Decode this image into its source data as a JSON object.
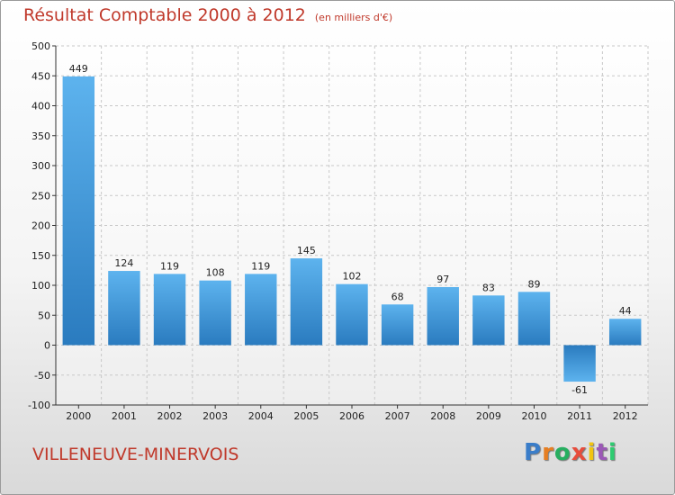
{
  "header": {
    "title": "Résultat Comptable 2000 à 2012",
    "unit": "(en milliers d'€)"
  },
  "footer": {
    "commune": "VILLENEUVE-MINERVOIS"
  },
  "logo": {
    "letters": [
      "P",
      "r",
      "o",
      "x",
      "i",
      "t",
      "i"
    ],
    "colors": [
      "#3a7dc9",
      "#e67e22",
      "#27ae60",
      "#e74c3c",
      "#f1c40f",
      "#9b59b6",
      "#2ecc71"
    ]
  },
  "chart_data": {
    "type": "bar",
    "categories": [
      "2000",
      "2001",
      "2002",
      "2003",
      "2004",
      "2005",
      "2006",
      "2007",
      "2008",
      "2009",
      "2010",
      "2011",
      "2012"
    ],
    "values": [
      449,
      124,
      119,
      108,
      119,
      145,
      102,
      68,
      97,
      83,
      89,
      -61,
      44
    ],
    "title": "Résultat Comptable 2000 à 2012",
    "ylim": [
      -100,
      500
    ],
    "yticks": [
      -100,
      -50,
      0,
      50,
      100,
      150,
      200,
      250,
      300,
      350,
      400,
      450,
      500
    ],
    "grid": true,
    "bar_color": "#3a8fd8",
    "legend": "none"
  }
}
